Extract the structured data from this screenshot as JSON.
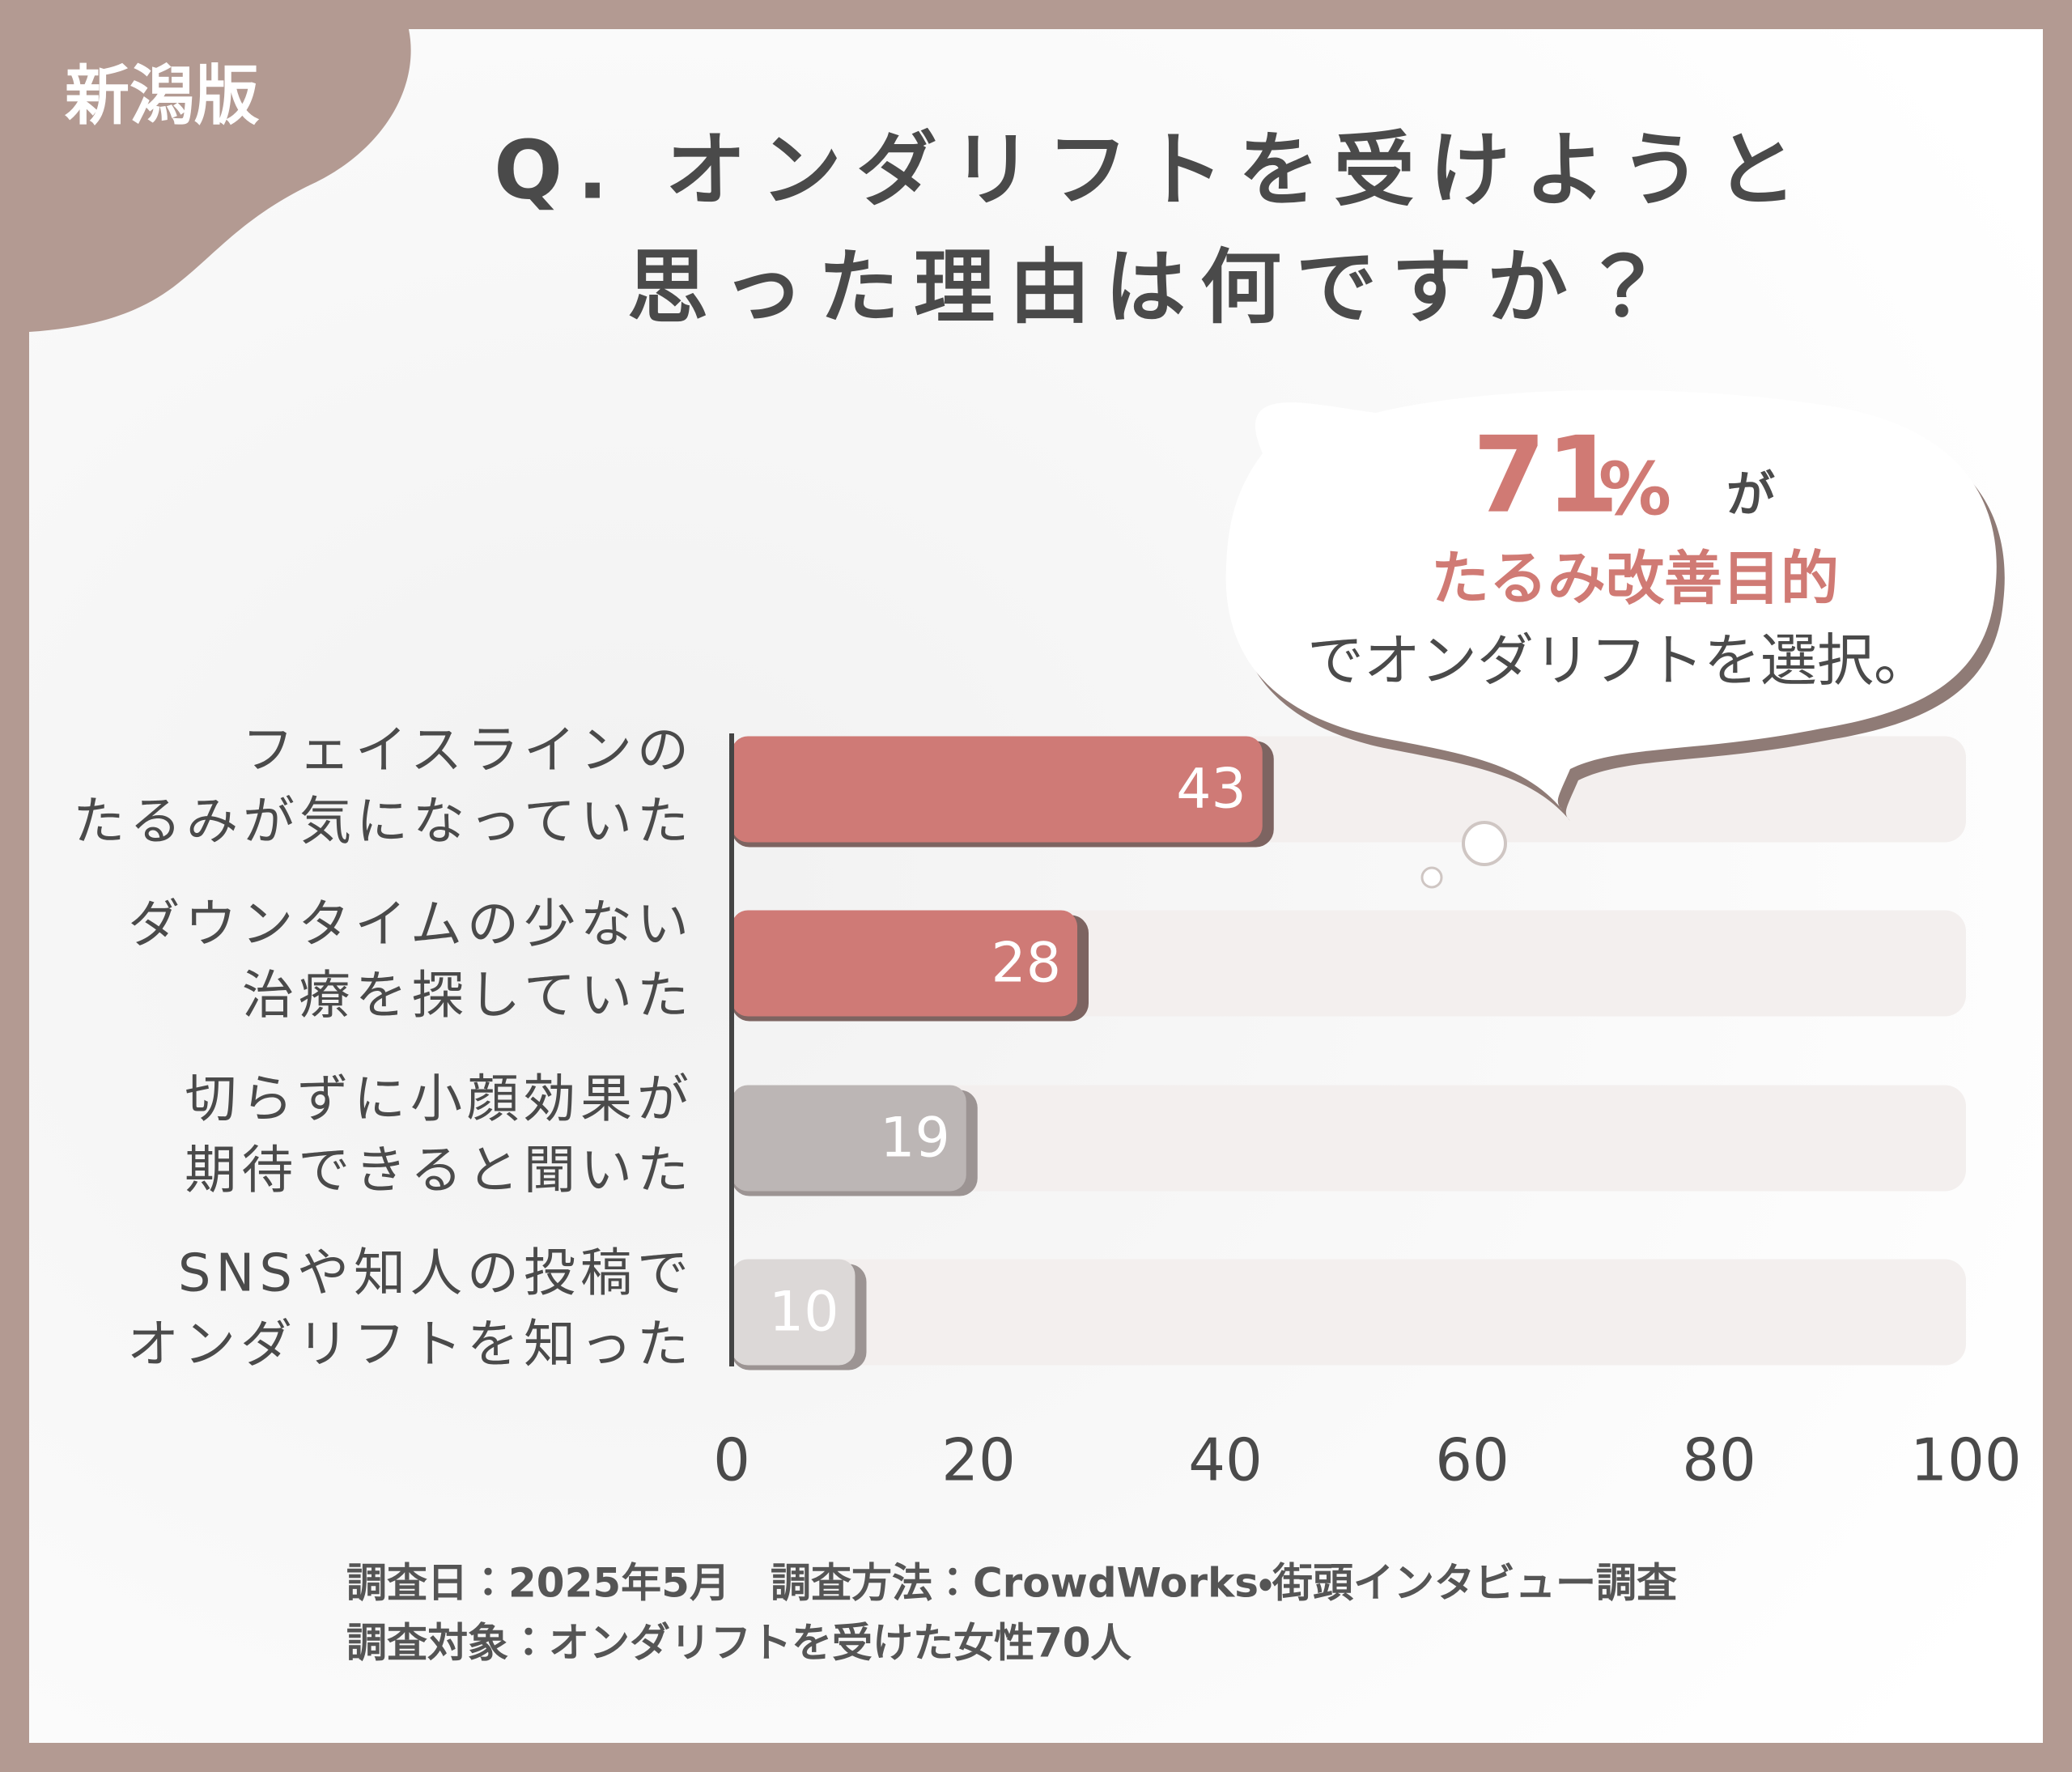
{
  "badge": "新潟版",
  "chart_data": {
    "type": "hbar",
    "title": [
      "Q. オンダリフトを受けようと",
      "思った理由は何ですか？"
    ],
    "categories": [
      [
        "フェイスラインの",
        "たるみが気になっていた"
      ],
      [
        "ダウンタイムの少ない",
        "治療を探していた"
      ],
      [
        "切らずに小顔効果が",
        "期待できると聞いた"
      ],
      [
        "SNSや知人の投稿で",
        "オンダリフトを知った"
      ]
    ],
    "values": [
      43,
      28,
      19,
      10
    ],
    "colors": [
      "#cf7a76",
      "#cf7a76",
      "#bcb6b5",
      "#dcd8d7"
    ],
    "xlim": [
      0,
      100
    ],
    "xticks": [
      0,
      20,
      40,
      60,
      80,
      100
    ],
    "callout": {
      "value": 71,
      "unit": "%",
      "suffix": "が",
      "lines": [
        "たるみ改善目的",
        "でオンダリフトを選択。"
      ]
    },
    "notes": [
      "調査日：2025年5月　調査方法：CrowdWorks・街頭インタビュー調査",
      "調査対象：オンダリフトを受けた女性70人"
    ]
  }
}
